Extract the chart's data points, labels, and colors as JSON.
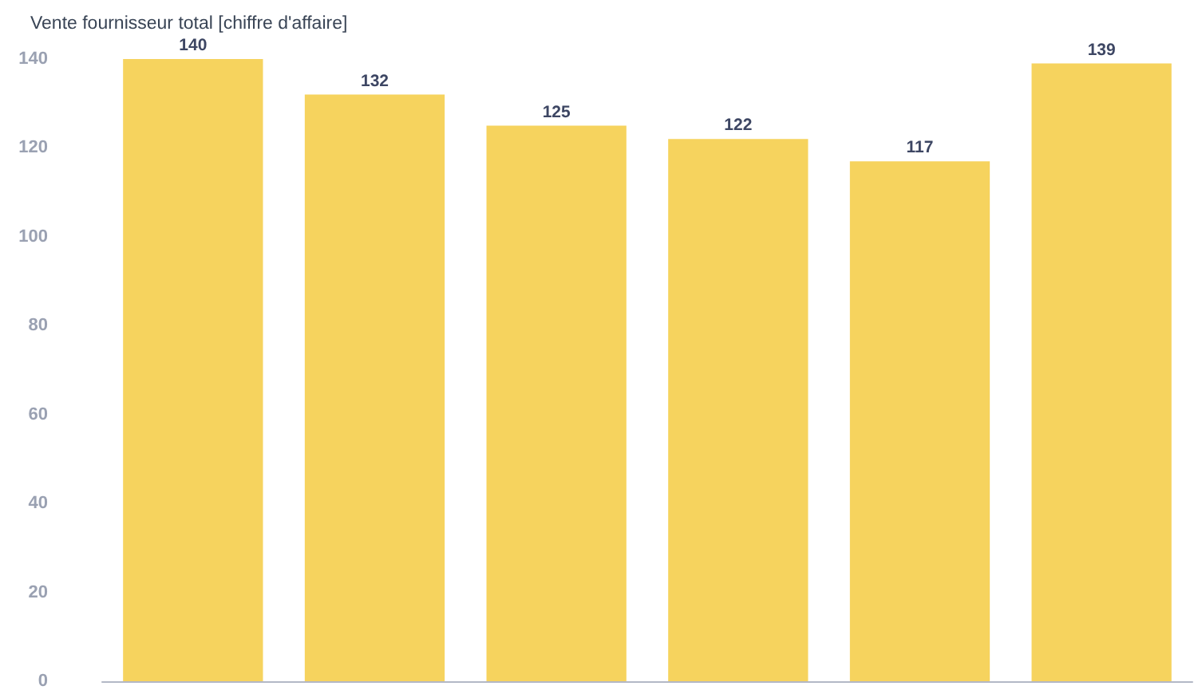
{
  "chart_data": {
    "type": "bar",
    "title": "Vente fournisseur total [chiffre d'affaire]",
    "categories": [
      null,
      null,
      null,
      null,
      null,
      null
    ],
    "values": [
      140,
      132,
      125,
      122,
      117,
      139
    ],
    "color": "#f6d35e",
    "ylim": [
      0,
      140
    ],
    "yticks": [
      0,
      20,
      40,
      60,
      80,
      100,
      120,
      140
    ],
    "grid": false,
    "data_labels": true
  }
}
